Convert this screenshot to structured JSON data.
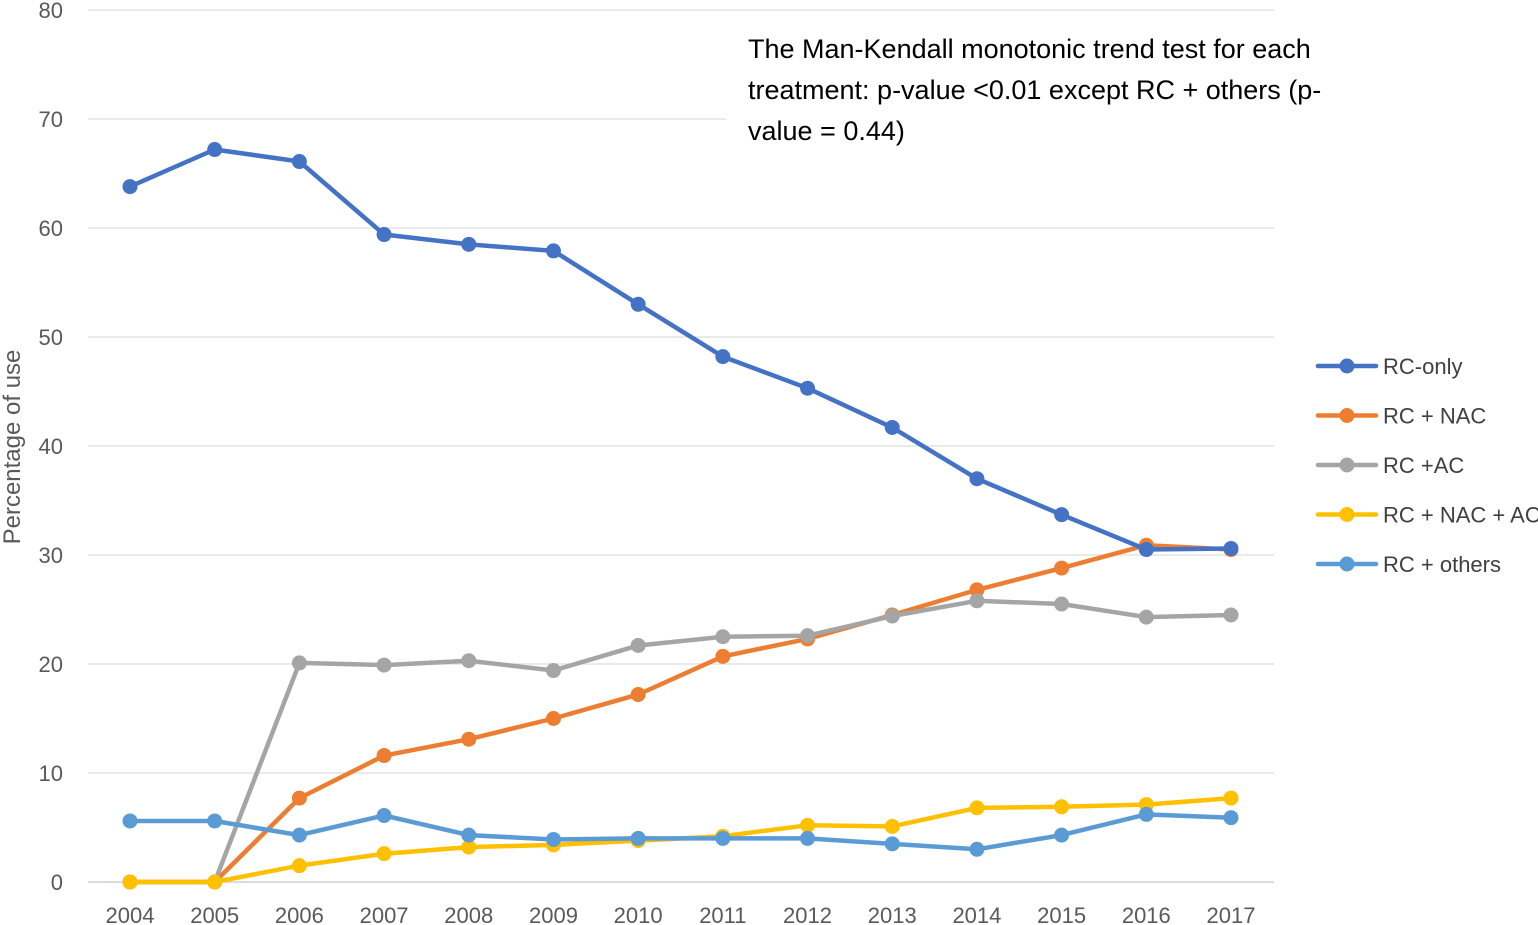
{
  "chart_data": {
    "type": "line",
    "title": "",
    "xlabel": "",
    "ylabel": "Percentage of use",
    "ylim": [
      0,
      80
    ],
    "yticks": [
      0,
      10,
      20,
      30,
      40,
      50,
      60,
      70,
      80
    ],
    "grid": true,
    "legend_position": "right",
    "categories": [
      "2004",
      "2005",
      "2006",
      "2007",
      "2008",
      "2009",
      "2010",
      "2011",
      "2012",
      "2013",
      "2014",
      "2015",
      "2016",
      "2017"
    ],
    "annotation": [
      "The Man-Kendall monotonic trend test for each",
      "treatment: p-value <0.01 except RC + others (p-",
      "value = 0.44)"
    ],
    "series": [
      {
        "name": "RC-only",
        "color": "#4472C4",
        "values": [
          63.8,
          67.2,
          66.1,
          59.4,
          58.5,
          57.9,
          53.0,
          48.2,
          45.3,
          41.7,
          37.0,
          33.7,
          30.5,
          30.6
        ]
      },
      {
        "name": "RC + NAC",
        "color": "#ED7D31",
        "values": [
          0,
          0,
          7.7,
          11.6,
          13.1,
          15.0,
          17.2,
          20.7,
          22.3,
          24.5,
          26.8,
          28.8,
          30.9,
          30.5
        ]
      },
      {
        "name": "RC +AC",
        "color": "#A5A5A5",
        "values": [
          0,
          0,
          20.1,
          19.9,
          20.3,
          19.4,
          21.7,
          22.5,
          22.6,
          24.4,
          25.8,
          25.5,
          24.3,
          24.5
        ]
      },
      {
        "name": "RC + NAC + AC",
        "color": "#FFC000",
        "values": [
          0,
          0,
          1.5,
          2.6,
          3.2,
          3.4,
          3.8,
          4.2,
          5.2,
          5.1,
          6.8,
          6.9,
          7.1,
          7.7
        ]
      },
      {
        "name": "RC + others",
        "color": "#5B9BD5",
        "values": [
          5.6,
          5.6,
          4.3,
          6.1,
          4.3,
          3.9,
          4.0,
          4.0,
          4.0,
          3.5,
          3.0,
          4.3,
          6.2,
          5.9
        ]
      }
    ]
  }
}
